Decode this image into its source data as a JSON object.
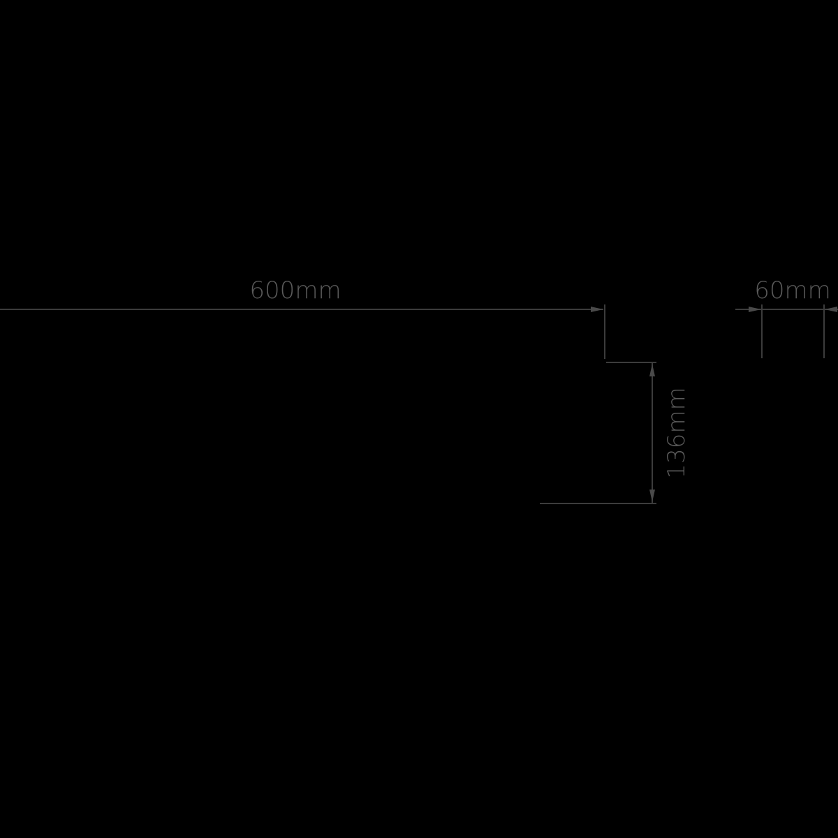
{
  "dimensions": {
    "width_label": "600mm",
    "depth_label": "60mm",
    "height_label": "136mm"
  },
  "colors": {
    "background": "#000000",
    "line": "#3c3c3c",
    "text": "#5a5a5a"
  }
}
